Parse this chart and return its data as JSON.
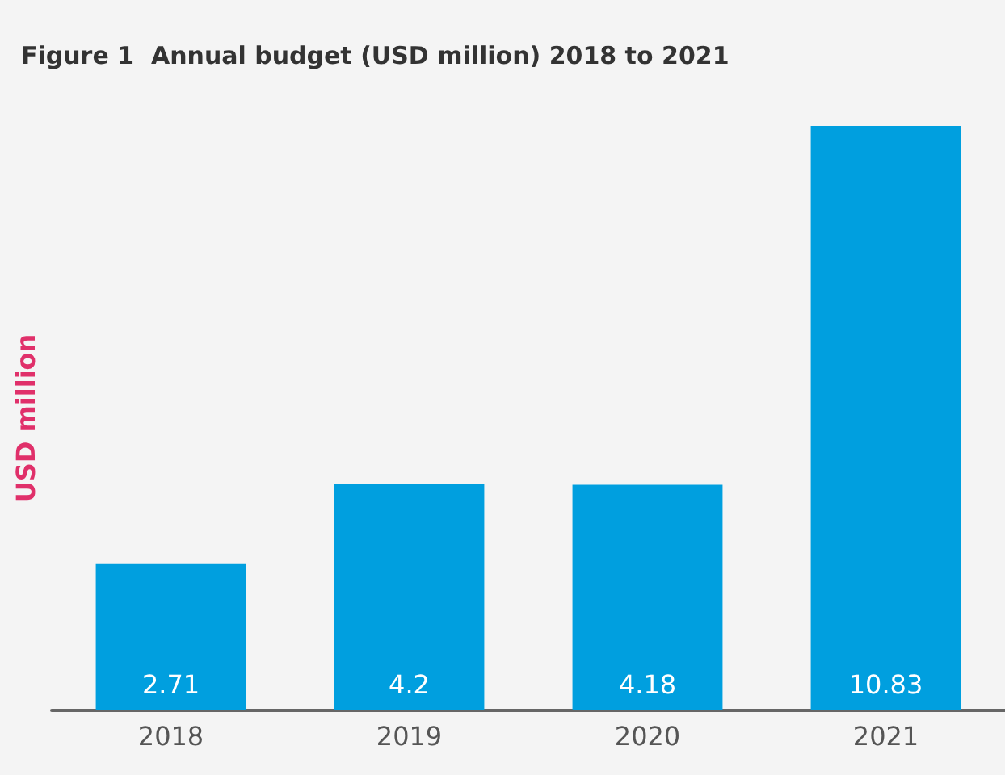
{
  "chart_data": {
    "type": "bar",
    "title": "Figure 1  Annual budget (USD million) 2018 to 2021",
    "ylabel": "USD million",
    "categories": [
      "2018",
      "2019",
      "2020",
      "2021"
    ],
    "values": [
      2.71,
      4.2,
      4.18,
      10.83
    ],
    "color": "#009fdf",
    "data_labels": true,
    "grid": false,
    "tick_labels": "x"
  }
}
